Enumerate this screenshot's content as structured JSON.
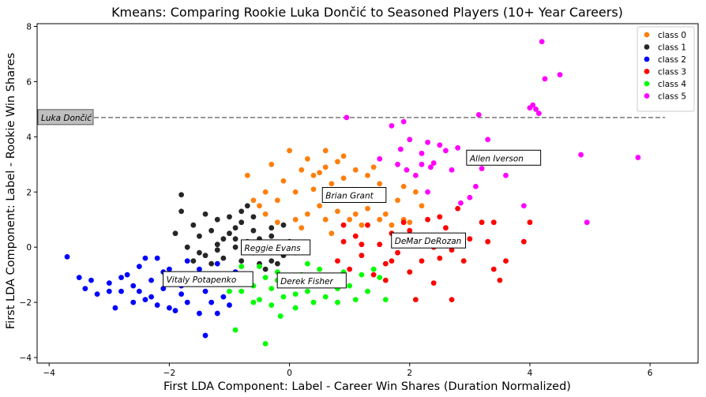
{
  "chart_data": {
    "type": "scatter",
    "title": "Kmeans: Comparing Rookie Luka Dončić to Seasoned Players (10+ Year Careers)",
    "xlabel": "First LDA Component: Label - Career Win Shares (Duration Normalized)",
    "ylabel": "First LDA Component: Label - Rookie Win Shares",
    "xlim": [
      -4.2,
      6.8
    ],
    "ylim": [
      -4.2,
      8.1
    ],
    "xticks": [
      -4,
      -2,
      0,
      2,
      4,
      6
    ],
    "yticks": [
      -4,
      -2,
      0,
      2,
      4,
      6,
      8
    ],
    "legend_position": "top-right",
    "reference_line": {
      "y": 4.7,
      "x_start": -4.2,
      "x_end": 6.25,
      "style": "dashed",
      "color": "#777777",
      "label": "Luka Dončić"
    },
    "series": [
      {
        "name": "class 0",
        "color": "#ff7f0e",
        "points": [
          [
            -0.7,
            2.6
          ],
          [
            -0.5,
            1.5
          ],
          [
            -0.4,
            2.0
          ],
          [
            -0.3,
            3.0
          ],
          [
            -0.2,
            1.7
          ],
          [
            -0.1,
            2.4
          ],
          [
            0.0,
            3.5
          ],
          [
            0.1,
            1.0
          ],
          [
            0.1,
            2.0
          ],
          [
            0.2,
            2.8
          ],
          [
            0.3,
            1.2
          ],
          [
            0.3,
            3.2
          ],
          [
            0.4,
            2.1
          ],
          [
            0.5,
            2.7
          ],
          [
            0.5,
            1.5
          ],
          [
            0.6,
            3.5
          ],
          [
            0.6,
            1.0
          ],
          [
            0.7,
            2.3
          ],
          [
            0.8,
            3.1
          ],
          [
            0.8,
            1.3
          ],
          [
            0.9,
            2.5
          ],
          [
            0.9,
            3.3
          ],
          [
            1.0,
            1.0
          ],
          [
            1.0,
            1.9
          ],
          [
            1.1,
            2.8
          ],
          [
            1.1,
            1.2
          ],
          [
            1.2,
            2.0
          ],
          [
            1.2,
            0.8
          ],
          [
            1.3,
            2.6
          ],
          [
            1.3,
            1.4
          ],
          [
            1.4,
            2.0
          ],
          [
            1.5,
            1.0
          ],
          [
            1.5,
            2.3
          ],
          [
            1.6,
            1.2
          ],
          [
            1.7,
            0.8
          ],
          [
            1.8,
            1.7
          ],
          [
            1.9,
            2.2
          ],
          [
            2.0,
            0.9
          ],
          [
            2.1,
            2.0
          ],
          [
            2.2,
            1.5
          ],
          [
            -0.2,
            0.9
          ],
          [
            -0.4,
            1.2
          ],
          [
            0.2,
            0.7
          ],
          [
            0.7,
            0.5
          ],
          [
            1.9,
            1.0
          ],
          [
            0.4,
            2.6
          ],
          [
            0.9,
            2.0
          ],
          [
            1.4,
            2.9
          ],
          [
            -0.6,
            1.7
          ],
          [
            0.6,
            2.9
          ]
        ]
      },
      {
        "name": "class 1",
        "color": "#262626",
        "points": [
          [
            -1.8,
            1.9
          ],
          [
            -1.8,
            1.3
          ],
          [
            -1.6,
            0.8
          ],
          [
            -1.5,
            0.4
          ],
          [
            -1.4,
            1.2
          ],
          [
            -1.3,
            0.6
          ],
          [
            -1.2,
            0.1
          ],
          [
            -1.2,
            1.0
          ],
          [
            -1.1,
            -0.4
          ],
          [
            -1.0,
            0.5
          ],
          [
            -1.0,
            1.1
          ],
          [
            -0.9,
            0.0
          ],
          [
            -0.9,
            0.7
          ],
          [
            -0.8,
            1.3
          ],
          [
            -0.8,
            -0.5
          ],
          [
            -0.7,
            0.2
          ],
          [
            -0.7,
            1.5
          ],
          [
            -0.6,
            -0.2
          ],
          [
            -0.6,
            0.6
          ],
          [
            -0.5,
            -0.6
          ],
          [
            -0.5,
            0.3
          ],
          [
            -0.4,
            -0.1
          ],
          [
            -0.3,
            0.4
          ],
          [
            -0.3,
            -0.5
          ],
          [
            -0.2,
            0.1
          ],
          [
            -0.1,
            -0.3
          ],
          [
            -0.1,
            0.8
          ],
          [
            0.0,
            0.2
          ],
          [
            0.1,
            -0.2
          ],
          [
            -1.5,
            -0.2
          ],
          [
            -1.7,
            0.0
          ],
          [
            -1.9,
            0.5
          ],
          [
            -1.3,
            -0.6
          ],
          [
            -1.1,
            0.3
          ],
          [
            -0.8,
            0.9
          ],
          [
            -0.4,
            -0.8
          ],
          [
            -0.2,
            -0.6
          ],
          [
            -0.9,
            -0.9
          ],
          [
            -1.4,
            -0.3
          ],
          [
            -0.6,
            1.1
          ],
          [
            -0.3,
            0.7
          ],
          [
            -1.2,
            -0.1
          ],
          [
            -1.6,
            -0.5
          ],
          [
            -0.5,
            0.0
          ],
          [
            -0.9,
            0.3
          ]
        ]
      },
      {
        "name": "class 2",
        "color": "#0000ff",
        "points": [
          [
            -3.7,
            -0.35
          ],
          [
            -3.5,
            -1.1
          ],
          [
            -3.4,
            -1.5
          ],
          [
            -3.3,
            -1.2
          ],
          [
            -3.2,
            -1.7
          ],
          [
            -3.0,
            -1.3
          ],
          [
            -2.9,
            -2.2
          ],
          [
            -2.8,
            -1.6
          ],
          [
            -2.7,
            -1.0
          ],
          [
            -2.6,
            -1.4
          ],
          [
            -2.5,
            -0.7
          ],
          [
            -2.4,
            -1.9
          ],
          [
            -2.3,
            -1.2
          ],
          [
            -2.2,
            -0.4
          ],
          [
            -2.2,
            -2.1
          ],
          [
            -2.1,
            -1.5
          ],
          [
            -2.0,
            -0.8
          ],
          [
            -2.0,
            -2.2
          ],
          [
            -1.9,
            -1.1
          ],
          [
            -1.8,
            -1.7
          ],
          [
            -1.7,
            -0.5
          ],
          [
            -1.7,
            -2.0
          ],
          [
            -1.6,
            -1.3
          ],
          [
            -1.5,
            -0.8
          ],
          [
            -1.5,
            -2.4
          ],
          [
            -1.4,
            -1.6
          ],
          [
            -1.3,
            -1.0
          ],
          [
            -1.3,
            -2.0
          ],
          [
            -1.2,
            -0.6
          ],
          [
            -1.1,
            -1.8
          ],
          [
            -1.0,
            -1.3
          ],
          [
            -0.9,
            -0.9
          ],
          [
            -1.4,
            -3.2
          ],
          [
            -2.6,
            -2.0
          ],
          [
            -2.8,
            -1.1
          ],
          [
            -3.0,
            -1.6
          ],
          [
            -2.4,
            -0.4
          ],
          [
            -1.9,
            -2.3
          ],
          [
            -1.2,
            -2.4
          ],
          [
            -1.6,
            -1.0
          ],
          [
            -2.1,
            -0.9
          ],
          [
            -2.5,
            -1.6
          ],
          [
            -1.8,
            -1.4
          ],
          [
            -1.0,
            -2.1
          ],
          [
            -2.3,
            -1.8
          ]
        ]
      },
      {
        "name": "class 3",
        "color": "#ff0000",
        "points": [
          [
            0.8,
            -0.5
          ],
          [
            0.9,
            0.2
          ],
          [
            1.0,
            -0.8
          ],
          [
            1.1,
            0.4
          ],
          [
            1.2,
            -0.3
          ],
          [
            1.3,
            0.8
          ],
          [
            1.4,
            -1.0
          ],
          [
            1.5,
            0.1
          ],
          [
            1.6,
            -0.6
          ],
          [
            1.7,
            0.5
          ],
          [
            1.8,
            -0.2
          ],
          [
            1.9,
            0.9
          ],
          [
            2.0,
            -0.9
          ],
          [
            2.1,
            0.3
          ],
          [
            2.2,
            -0.5
          ],
          [
            2.3,
            1.0
          ],
          [
            2.4,
            0.0
          ],
          [
            2.5,
            -0.4
          ],
          [
            2.6,
            0.7
          ],
          [
            2.7,
            -0.1
          ],
          [
            2.8,
            1.4
          ],
          [
            2.9,
            -0.5
          ],
          [
            3.0,
            0.3
          ],
          [
            3.2,
            0.9
          ],
          [
            3.3,
            0.2
          ],
          [
            3.4,
            -0.8
          ],
          [
            3.5,
            -1.2
          ],
          [
            3.9,
            0.2
          ],
          [
            2.1,
            -1.9
          ],
          [
            2.7,
            -1.9
          ],
          [
            2.4,
            -1.3
          ],
          [
            1.6,
            -1.2
          ],
          [
            3.4,
            0.9
          ],
          [
            4.0,
            0.9
          ],
          [
            2.0,
            0.6
          ],
          [
            1.2,
            0.1
          ],
          [
            2.5,
            1.1
          ],
          [
            0.9,
            0.8
          ],
          [
            3.6,
            -0.5
          ],
          [
            1.7,
            -0.5
          ]
        ]
      },
      {
        "name": "class 4",
        "color": "#00ff00",
        "points": [
          [
            -0.9,
            -1.2
          ],
          [
            -0.8,
            -1.6
          ],
          [
            -0.7,
            -1.0
          ],
          [
            -0.6,
            -1.4
          ],
          [
            -0.5,
            -1.9
          ],
          [
            -0.4,
            -1.1
          ],
          [
            -0.3,
            -1.5
          ],
          [
            -0.2,
            -0.9
          ],
          [
            -0.1,
            -1.8
          ],
          [
            0.0,
            -1.3
          ],
          [
            0.1,
            -2.2
          ],
          [
            0.2,
            -1.0
          ],
          [
            0.3,
            -1.6
          ],
          [
            0.4,
            -1.2
          ],
          [
            0.5,
            -0.8
          ],
          [
            0.6,
            -1.8
          ],
          [
            0.7,
            -1.1
          ],
          [
            0.8,
            -1.5
          ],
          [
            0.9,
            -0.9
          ],
          [
            1.0,
            -1.4
          ],
          [
            1.1,
            -1.9
          ],
          [
            1.2,
            -1.0
          ],
          [
            1.3,
            -1.6
          ],
          [
            1.5,
            -1.1
          ],
          [
            1.6,
            -1.9
          ],
          [
            -0.9,
            -3.0
          ],
          [
            -0.4,
            -3.5
          ],
          [
            -0.15,
            -2.5
          ],
          [
            -1.0,
            -1.6
          ],
          [
            -0.8,
            -0.7
          ],
          [
            -0.6,
            -2.0
          ],
          [
            -0.2,
            -1.2
          ],
          [
            0.3,
            -0.6
          ],
          [
            0.6,
            -1.3
          ],
          [
            1.4,
            -0.8
          ],
          [
            -0.3,
            -2.1
          ],
          [
            0.1,
            -1.7
          ],
          [
            0.8,
            -2.0
          ],
          [
            -0.5,
            -0.7
          ],
          [
            0.4,
            -2.0
          ]
        ]
      },
      {
        "name": "class 5",
        "color": "#ff00ff",
        "points": [
          [
            0.95,
            4.7
          ],
          [
            1.5,
            3.2
          ],
          [
            1.7,
            4.4
          ],
          [
            1.8,
            3.0
          ],
          [
            1.9,
            4.55
          ],
          [
            1.95,
            2.8
          ],
          [
            2.0,
            3.9
          ],
          [
            2.1,
            2.6
          ],
          [
            2.2,
            3.4
          ],
          [
            2.3,
            3.8
          ],
          [
            2.35,
            2.9
          ],
          [
            2.4,
            3.05
          ],
          [
            2.5,
            3.7
          ],
          [
            2.6,
            3.5
          ],
          [
            2.7,
            2.8
          ],
          [
            2.8,
            3.6
          ],
          [
            2.85,
            1.6
          ],
          [
            3.0,
            1.8
          ],
          [
            3.1,
            2.2
          ],
          [
            3.15,
            4.8
          ],
          [
            3.2,
            2.85
          ],
          [
            3.3,
            3.9
          ],
          [
            3.6,
            2.6
          ],
          [
            3.9,
            1.5
          ],
          [
            4.0,
            5.05
          ],
          [
            4.05,
            5.15
          ],
          [
            4.1,
            5.0
          ],
          [
            4.15,
            4.85
          ],
          [
            4.2,
            7.45
          ],
          [
            4.25,
            6.1
          ],
          [
            4.5,
            6.25
          ],
          [
            4.85,
            3.35
          ],
          [
            4.95,
            0.9
          ],
          [
            5.8,
            3.25
          ],
          [
            2.2,
            3.0
          ],
          [
            1.85,
            3.55
          ],
          [
            2.3,
            2.0
          ],
          [
            3.35,
            3.1
          ]
        ]
      }
    ],
    "annotations": [
      {
        "text": "Allen Iverson",
        "x": 3.0,
        "y": 3.2
      },
      {
        "text": "Brian Grant",
        "x": 0.6,
        "y": 1.85
      },
      {
        "text": "DeMar DeRozan",
        "x": 1.75,
        "y": 0.2
      },
      {
        "text": "Reggie Evans",
        "x": -0.75,
        "y": -0.05
      },
      {
        "text": "Vitaly Potapenko",
        "x": -2.05,
        "y": -1.2
      },
      {
        "text": "Derek Fisher",
        "x": -0.15,
        "y": -1.25
      }
    ]
  }
}
